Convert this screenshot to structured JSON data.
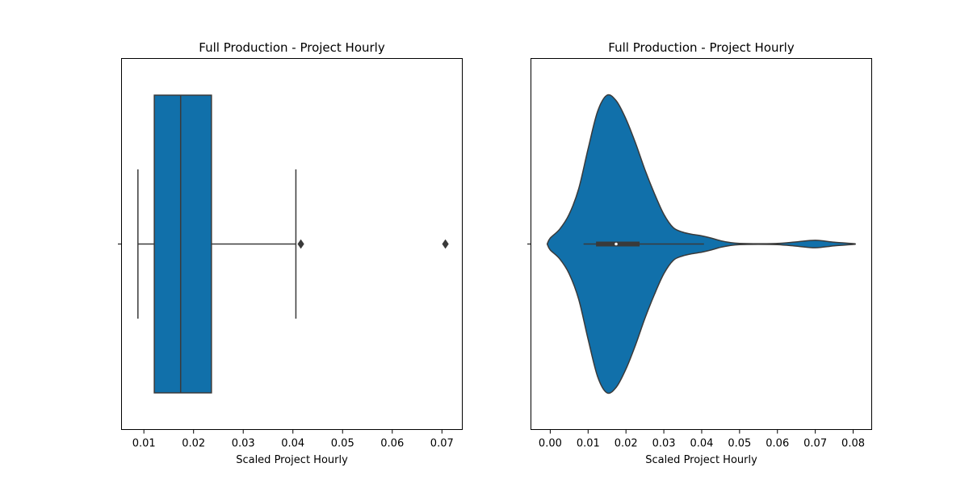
{
  "chart_data": [
    {
      "type": "box",
      "title": "Full Production - Project Hourly",
      "xlabel": "Scaled Project Hourly",
      "ylabel": "",
      "xlim": [
        0.0055,
        0.0741
      ],
      "xticks": [
        0.01,
        0.02,
        0.03,
        0.04,
        0.05,
        0.06,
        0.07
      ],
      "xtick_labels": [
        "0.01",
        "0.02",
        "0.03",
        "0.04",
        "0.05",
        "0.06",
        "0.07"
      ],
      "box": {
        "whisker_low": 0.0088,
        "q1": 0.0121,
        "median": 0.0174,
        "q3": 0.0236,
        "whisker_high": 0.0406
      },
      "outliers": [
        0.0416,
        0.0707
      ],
      "color": "#1170aa",
      "grid": false,
      "legend": "none"
    },
    {
      "type": "violin",
      "title": "Full Production - Project Hourly",
      "xlabel": "Scaled Project Hourly",
      "ylabel": "",
      "xlim": [
        -0.0051,
        0.0849
      ],
      "xticks": [
        0.0,
        0.01,
        0.02,
        0.03,
        0.04,
        0.05,
        0.06,
        0.07,
        0.08
      ],
      "xtick_labels": [
        "0.00",
        "0.01",
        "0.02",
        "0.03",
        "0.04",
        "0.05",
        "0.06",
        "0.07",
        "0.08"
      ],
      "density": {
        "x": [
          -0.0008,
          0.0,
          0.0025,
          0.005,
          0.0075,
          0.01,
          0.0125,
          0.015,
          0.0175,
          0.02,
          0.0225,
          0.025,
          0.0275,
          0.03,
          0.0325,
          0.035,
          0.0375,
          0.04,
          0.0425,
          0.045,
          0.0475,
          0.05,
          0.055,
          0.06,
          0.065,
          0.07,
          0.075,
          0.08,
          0.0805
        ],
        "width": [
          0.0,
          0.04,
          0.1,
          0.2,
          0.37,
          0.64,
          0.89,
          1.0,
          0.96,
          0.84,
          0.68,
          0.5,
          0.34,
          0.2,
          0.11,
          0.08,
          0.065,
          0.055,
          0.04,
          0.022,
          0.01,
          0.004,
          0.002,
          0.004,
          0.014,
          0.025,
          0.012,
          0.003,
          0.0
        ]
      },
      "inner_box": {
        "whisker_low": 0.0088,
        "q1": 0.0121,
        "median": 0.0174,
        "q3": 0.0236,
        "whisker_high": 0.0406
      },
      "color": "#1170aa",
      "grid": false,
      "legend": "none"
    }
  ]
}
